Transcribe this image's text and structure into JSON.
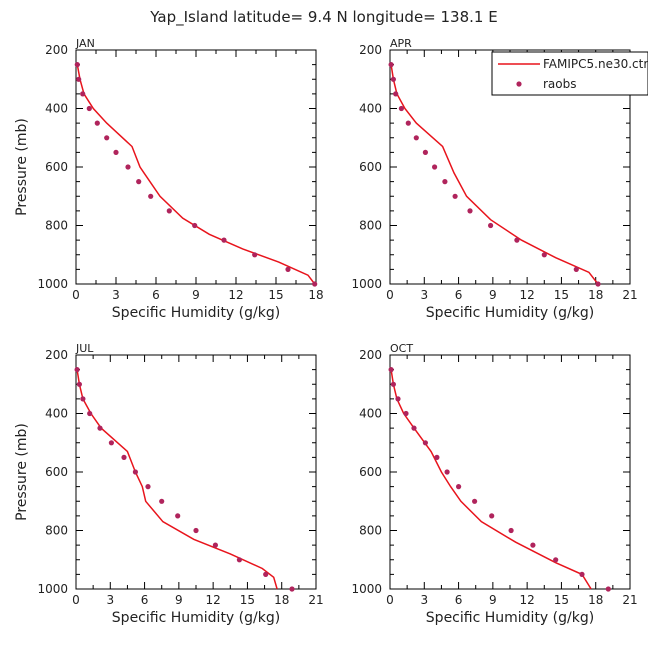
{
  "figure": {
    "title": "Yap_Island latitude= 9.4 N longitude= 138.1 E"
  },
  "legend": {
    "items": [
      {
        "label": "FAMIPC5.ne30.ctrl",
        "kind": "line",
        "color": "#e8141c"
      },
      {
        "label": "raobs",
        "kind": "marker",
        "color": "#b0245c"
      }
    ],
    "placement": "top-right of APR panel"
  },
  "chart_data": [
    {
      "type": "line",
      "panel": "JAN",
      "xlabel": "Specific Humidity (g/kg)",
      "ylabel": "Pressure (mb)",
      "xlim": [
        0,
        18
      ],
      "ylim": [
        200,
        1000
      ],
      "y_reversed": true,
      "xticks": [
        0,
        3,
        6,
        9,
        12,
        15,
        18
      ],
      "yticks": [
        200,
        400,
        600,
        800,
        1000
      ],
      "series": [
        {
          "name": "FAMIPC5.ne30.ctrl",
          "kind": "line",
          "x": [
            0.1,
            0.3,
            0.6,
            1.3,
            2.3,
            4.2,
            4.8,
            5.1,
            6.3,
            8.0,
            10.0,
            12.5,
            15.2,
            17.4,
            17.9
          ],
          "y": [
            250,
            300,
            350,
            400,
            450,
            530,
            600,
            620,
            700,
            775,
            830,
            880,
            925,
            970,
            1000
          ]
        },
        {
          "name": "raobs",
          "kind": "scatter",
          "x": [
            0.1,
            0.2,
            0.5,
            1.0,
            1.6,
            2.3,
            3.0,
            3.9,
            4.7,
            5.6,
            7.0,
            8.9,
            11.1,
            13.4,
            15.9,
            17.9
          ],
          "y": [
            250,
            300,
            350,
            400,
            450,
            500,
            550,
            600,
            650,
            700,
            750,
            800,
            850,
            900,
            950,
            1000
          ]
        }
      ]
    },
    {
      "type": "line",
      "panel": "APR",
      "xlabel": "Specific Humidity (g/kg)",
      "ylabel": "Pressure (mb)",
      "xlim": [
        0,
        21
      ],
      "ylim": [
        200,
        1000
      ],
      "y_reversed": true,
      "xticks": [
        0,
        3,
        6,
        9,
        12,
        15,
        18,
        21
      ],
      "yticks": [
        200,
        400,
        600,
        800,
        1000
      ],
      "series": [
        {
          "name": "FAMIPC5.ne30.ctrl",
          "kind": "line",
          "x": [
            0.1,
            0.3,
            0.6,
            1.3,
            2.3,
            4.6,
            5.6,
            6.7,
            8.8,
            11.5,
            14.5,
            17.4,
            18.2
          ],
          "y": [
            250,
            300,
            350,
            400,
            450,
            530,
            620,
            700,
            780,
            850,
            910,
            960,
            1000
          ]
        },
        {
          "name": "raobs",
          "kind": "scatter",
          "x": [
            0.1,
            0.3,
            0.5,
            1.0,
            1.6,
            2.3,
            3.1,
            3.9,
            4.8,
            5.7,
            7.0,
            8.8,
            11.1,
            13.5,
            16.3,
            18.2
          ],
          "y": [
            250,
            300,
            350,
            400,
            450,
            500,
            550,
            600,
            650,
            700,
            750,
            800,
            850,
            900,
            950,
            1000
          ]
        }
      ]
    },
    {
      "type": "line",
      "panel": "JUL",
      "xlabel": "Specific Humidity (g/kg)",
      "ylabel": "Pressure (mb)",
      "xlim": [
        0,
        21
      ],
      "ylim": [
        200,
        1000
      ],
      "y_reversed": true,
      "xticks": [
        0,
        3,
        6,
        9,
        12,
        15,
        18,
        21
      ],
      "yticks": [
        200,
        400,
        600,
        800,
        1000
      ],
      "series": [
        {
          "name": "FAMIPC5.ne30.ctrl",
          "kind": "line",
          "x": [
            0.1,
            0.3,
            0.6,
            1.3,
            2.2,
            4.5,
            5.2,
            5.8,
            6.1,
            7.6,
            10.3,
            13.5,
            16.3,
            17.3,
            17.6
          ],
          "y": [
            250,
            300,
            350,
            400,
            450,
            530,
            600,
            650,
            700,
            770,
            830,
            880,
            930,
            960,
            1000
          ]
        },
        {
          "name": "raobs",
          "kind": "scatter",
          "x": [
            0.1,
            0.3,
            0.6,
            1.2,
            2.1,
            3.1,
            4.2,
            5.2,
            6.3,
            7.5,
            8.9,
            10.5,
            12.2,
            14.3,
            16.6,
            18.9
          ],
          "y": [
            250,
            300,
            350,
            400,
            450,
            500,
            550,
            600,
            650,
            700,
            750,
            800,
            850,
            900,
            950,
            1000
          ]
        }
      ]
    },
    {
      "type": "line",
      "panel": "OCT",
      "xlabel": "Specific Humidity (g/kg)",
      "ylabel": "Pressure (mb)",
      "xlim": [
        0,
        21
      ],
      "ylim": [
        200,
        1000
      ],
      "y_reversed": true,
      "xticks": [
        0,
        3,
        6,
        9,
        12,
        15,
        18,
        21
      ],
      "yticks": [
        200,
        400,
        600,
        800,
        1000
      ],
      "series": [
        {
          "name": "FAMIPC5.ne30.ctrl",
          "kind": "line",
          "x": [
            0.1,
            0.3,
            0.6,
            1.2,
            2.1,
            3.6,
            4.5,
            5.3,
            6.2,
            8.0,
            11.0,
            14.5,
            16.8,
            17.6
          ],
          "y": [
            250,
            300,
            350,
            400,
            450,
            530,
            600,
            650,
            700,
            770,
            840,
            910,
            950,
            1000
          ]
        },
        {
          "name": "raobs",
          "kind": "scatter",
          "x": [
            0.1,
            0.3,
            0.7,
            1.4,
            2.1,
            3.1,
            4.1,
            5.0,
            6.0,
            7.4,
            8.9,
            10.6,
            12.5,
            14.5,
            16.8,
            19.1
          ],
          "y": [
            250,
            300,
            350,
            400,
            450,
            500,
            550,
            600,
            650,
            700,
            750,
            800,
            850,
            900,
            950,
            1000
          ]
        }
      ]
    }
  ]
}
